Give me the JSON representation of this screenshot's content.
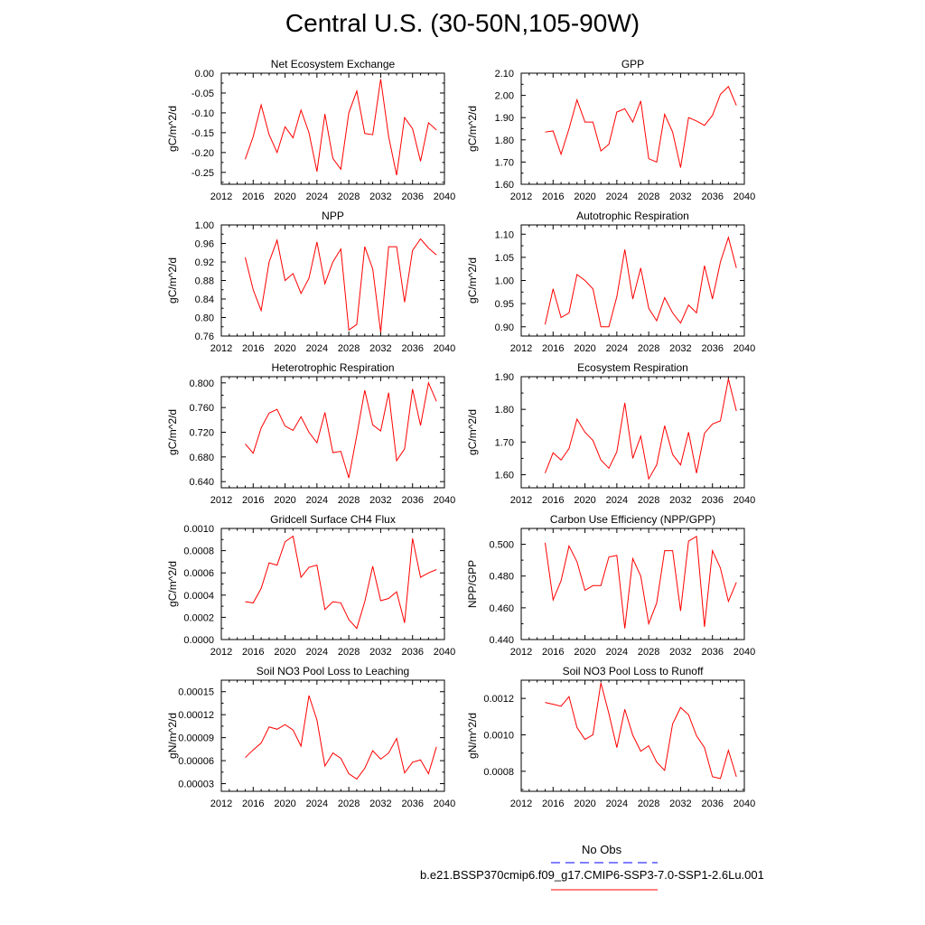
{
  "title": "Central U.S. (30-50N,105-90W)",
  "colors": {
    "model": "#ff0000",
    "obs": "#0000ff",
    "axis": "#000000"
  },
  "legend": {
    "obs_label": "No Obs",
    "model_label": "b.e21.BSSP370cmip6.f09_g17.CMIP6-SSP3-7.0-SSP1-2.6Lu.001"
  },
  "chart_data": [
    {
      "type": "line",
      "title": "Net Ecosystem Exchange",
      "ylabel": "gC/m^2/d",
      "xlabel": "",
      "xlim": [
        2012,
        2040
      ],
      "xticks": [
        "2012",
        "2016",
        "2020",
        "2024",
        "2028",
        "2032",
        "2036",
        "2040"
      ],
      "ylim": [
        -0.28,
        0.0
      ],
      "yticks": [
        "0.00",
        "-0.05",
        "-0.10",
        "-0.15",
        "-0.20",
        "-0.25"
      ],
      "x": [
        2015,
        2016,
        2017,
        2018,
        2019,
        2020,
        2021,
        2022,
        2023,
        2024,
        2025,
        2026,
        2027,
        2028,
        2029,
        2030,
        2031,
        2032,
        2033,
        2034,
        2035,
        2036,
        2037,
        2038,
        2039
      ],
      "series": [
        {
          "values": [
            -0.217,
            -0.16,
            -0.08,
            -0.155,
            -0.2,
            -0.135,
            -0.163,
            -0.093,
            -0.15,
            -0.248,
            -0.103,
            -0.215,
            -0.242,
            -0.1,
            -0.045,
            -0.152,
            -0.155,
            -0.015,
            -0.16,
            -0.257,
            -0.112,
            -0.14,
            -0.222,
            -0.125,
            -0.143
          ]
        }
      ]
    },
    {
      "type": "line",
      "title": "GPP",
      "ylabel": "gC/m^2/d",
      "xlabel": "",
      "xlim": [
        2012,
        2040
      ],
      "xticks": [
        "2012",
        "2016",
        "2020",
        "2024",
        "2028",
        "2032",
        "2036",
        "2040"
      ],
      "ylim": [
        1.6,
        2.1
      ],
      "yticks": [
        "2.10",
        "2.00",
        "1.90",
        "1.80",
        "1.70",
        "1.60"
      ],
      "x": [
        2015,
        2016,
        2017,
        2018,
        2019,
        2020,
        2021,
        2022,
        2023,
        2024,
        2025,
        2026,
        2027,
        2028,
        2029,
        2030,
        2031,
        2032,
        2033,
        2034,
        2035,
        2036,
        2037,
        2038,
        2039
      ],
      "series": [
        {
          "values": [
            1.835,
            1.84,
            1.735,
            1.85,
            1.98,
            1.88,
            1.88,
            1.75,
            1.78,
            1.925,
            1.94,
            1.88,
            1.975,
            1.715,
            1.7,
            1.915,
            1.835,
            1.675,
            1.9,
            1.885,
            1.865,
            1.91,
            2.005,
            2.04,
            1.955
          ]
        }
      ]
    },
    {
      "type": "line",
      "title": "NPP",
      "ylabel": "gC/m^2/d",
      "xlabel": "",
      "xlim": [
        2012,
        2040
      ],
      "xticks": [
        "2012",
        "2016",
        "2020",
        "2024",
        "2028",
        "2032",
        "2036",
        "2040"
      ],
      "ylim": [
        0.76,
        1.0
      ],
      "yticks": [
        "1.00",
        "0.96",
        "0.92",
        "0.88",
        "0.84",
        "0.80",
        "0.76"
      ],
      "x": [
        2015,
        2016,
        2017,
        2018,
        2019,
        2020,
        2021,
        2022,
        2023,
        2024,
        2025,
        2026,
        2027,
        2028,
        2029,
        2030,
        2031,
        2032,
        2033,
        2034,
        2035,
        2036,
        2037,
        2038,
        2039
      ],
      "series": [
        {
          "values": [
            0.93,
            0.86,
            0.815,
            0.92,
            0.967,
            0.88,
            0.895,
            0.852,
            0.885,
            0.963,
            0.873,
            0.92,
            0.948,
            0.773,
            0.785,
            0.953,
            0.905,
            0.768,
            0.953,
            0.953,
            0.833,
            0.945,
            0.97,
            0.95,
            0.935
          ]
        }
      ]
    },
    {
      "type": "line",
      "title": "Autotrophic Respiration",
      "ylabel": "gC/m^2/d",
      "xlabel": "",
      "xlim": [
        2012,
        2040
      ],
      "xticks": [
        "2012",
        "2016",
        "2020",
        "2024",
        "2028",
        "2032",
        "2036",
        "2040"
      ],
      "ylim": [
        0.88,
        1.12
      ],
      "yticks": [
        "1.10",
        "1.05",
        "1.00",
        "0.95",
        "0.90"
      ],
      "x": [
        2015,
        2016,
        2017,
        2018,
        2019,
        2020,
        2021,
        2022,
        2023,
        2024,
        2025,
        2026,
        2027,
        2028,
        2029,
        2030,
        2031,
        2032,
        2033,
        2034,
        2035,
        2036,
        2037,
        2038,
        2039
      ],
      "series": [
        {
          "values": [
            0.905,
            0.982,
            0.92,
            0.93,
            1.013,
            1.0,
            0.982,
            0.9,
            0.9,
            0.965,
            1.067,
            0.96,
            1.027,
            0.94,
            0.913,
            0.963,
            0.93,
            0.908,
            0.947,
            0.93,
            1.032,
            0.96,
            1.04,
            1.093,
            1.027
          ]
        }
      ]
    },
    {
      "type": "line",
      "title": "Heterotrophic Respiration",
      "ylabel": "gC/m^2/d",
      "xlabel": "",
      "xlim": [
        2012,
        2040
      ],
      "xticks": [
        "2012",
        "2016",
        "2020",
        "2024",
        "2028",
        "2032",
        "2036",
        "2040"
      ],
      "ylim": [
        0.63,
        0.81
      ],
      "yticks": [
        "0.800",
        "0.760",
        "0.720",
        "0.680",
        "0.640"
      ],
      "x": [
        2015,
        2016,
        2017,
        2018,
        2019,
        2020,
        2021,
        2022,
        2023,
        2024,
        2025,
        2026,
        2027,
        2028,
        2029,
        2030,
        2031,
        2032,
        2033,
        2034,
        2035,
        2036,
        2037,
        2038,
        2039
      ],
      "series": [
        {
          "values": [
            0.701,
            0.686,
            0.727,
            0.751,
            0.757,
            0.73,
            0.723,
            0.745,
            0.72,
            0.703,
            0.752,
            0.687,
            0.689,
            0.646,
            0.715,
            0.788,
            0.732,
            0.722,
            0.784,
            0.674,
            0.693,
            0.79,
            0.731,
            0.8,
            0.77
          ]
        }
      ]
    },
    {
      "type": "line",
      "title": "Ecosystem Respiration",
      "ylabel": "gC/m^2/d",
      "xlabel": "",
      "xlim": [
        2012,
        2040
      ],
      "xticks": [
        "2012",
        "2016",
        "2020",
        "2024",
        "2028",
        "2032",
        "2036",
        "2040"
      ],
      "ylim": [
        1.56,
        1.9
      ],
      "yticks": [
        "1.90",
        "1.80",
        "1.70",
        "1.60"
      ],
      "x": [
        2015,
        2016,
        2017,
        2018,
        2019,
        2020,
        2021,
        2022,
        2023,
        2024,
        2025,
        2026,
        2027,
        2028,
        2029,
        2030,
        2031,
        2032,
        2033,
        2034,
        2035,
        2036,
        2037,
        2038,
        2039
      ],
      "series": [
        {
          "values": [
            1.605,
            1.667,
            1.645,
            1.68,
            1.77,
            1.73,
            1.705,
            1.645,
            1.62,
            1.67,
            1.82,
            1.65,
            1.718,
            1.587,
            1.63,
            1.75,
            1.662,
            1.63,
            1.73,
            1.605,
            1.727,
            1.755,
            1.765,
            1.893,
            1.795
          ]
        }
      ]
    },
    {
      "type": "line",
      "title": "Gridcell Surface CH4 Flux",
      "ylabel": "gC/m^2/d",
      "xlabel": "",
      "xlim": [
        2012,
        2040
      ],
      "xticks": [
        "2012",
        "2016",
        "2020",
        "2024",
        "2028",
        "2032",
        "2036",
        "2040"
      ],
      "ylim": [
        0.0,
        0.001
      ],
      "yticks": [
        "0.0010",
        "0.0008",
        "0.0006",
        "0.0004",
        "0.0002",
        "0.0000"
      ],
      "x": [
        2015,
        2016,
        2017,
        2018,
        2019,
        2020,
        2021,
        2022,
        2023,
        2024,
        2025,
        2026,
        2027,
        2028,
        2029,
        2030,
        2031,
        2032,
        2033,
        2034,
        2035,
        2036,
        2037,
        2038,
        2039
      ],
      "series": [
        {
          "values": [
            0.00034,
            0.00033,
            0.00046,
            0.00069,
            0.00067,
            0.00088,
            0.00093,
            0.00056,
            0.00065,
            0.00067,
            0.00027,
            0.00034,
            0.00033,
            0.00018,
            0.0001,
            0.00034,
            0.00066,
            0.00035,
            0.00037,
            0.00043,
            0.00015,
            0.00091,
            0.00056,
            0.0006,
            0.00063
          ]
        }
      ]
    },
    {
      "type": "line",
      "title": "Carbon Use Efficiency (NPP/GPP)",
      "ylabel": "NPP/GPP",
      "xlabel": "",
      "xlim": [
        2012,
        2040
      ],
      "xticks": [
        "2012",
        "2016",
        "2020",
        "2024",
        "2028",
        "2032",
        "2036",
        "2040"
      ],
      "ylim": [
        0.44,
        0.51
      ],
      "yticks": [
        "0.500",
        "0.480",
        "0.460",
        "0.440"
      ],
      "x": [
        2015,
        2016,
        2017,
        2018,
        2019,
        2020,
        2021,
        2022,
        2023,
        2024,
        2025,
        2026,
        2027,
        2028,
        2029,
        2030,
        2031,
        2032,
        2033,
        2034,
        2035,
        2036,
        2037,
        2038,
        2039
      ],
      "series": [
        {
          "values": [
            0.501,
            0.465,
            0.477,
            0.499,
            0.489,
            0.471,
            0.474,
            0.474,
            0.492,
            0.493,
            0.447,
            0.491,
            0.48,
            0.45,
            0.463,
            0.496,
            0.496,
            0.458,
            0.502,
            0.505,
            0.448,
            0.496,
            0.485,
            0.464,
            0.476
          ]
        }
      ]
    },
    {
      "type": "line",
      "title": "Soil NO3 Pool Loss to Leaching",
      "ylabel": "gN/m^2/d",
      "xlabel": "",
      "xlim": [
        2012,
        2040
      ],
      "xticks": [
        "2012",
        "2016",
        "2020",
        "2024",
        "2028",
        "2032",
        "2036",
        "2040"
      ],
      "ylim": [
        2e-05,
        0.000165
      ],
      "yticks": [
        "0.00015",
        "0.00012",
        "0.00009",
        "0.00006",
        "0.00003"
      ],
      "x": [
        2015,
        2016,
        2017,
        2018,
        2019,
        2020,
        2021,
        2022,
        2023,
        2024,
        2025,
        2026,
        2027,
        2028,
        2029,
        2030,
        2031,
        2032,
        2033,
        2034,
        2035,
        2036,
        2037,
        2038,
        2039
      ],
      "series": [
        {
          "values": [
            6.4e-05,
            7.4e-05,
            8.3e-05,
            0.000104,
            0.000101,
            0.000107,
            0.0001,
            7.9e-05,
            0.000145,
            0.000113,
            5.3e-05,
            7e-05,
            6.3e-05,
            4.3e-05,
            3.6e-05,
            5e-05,
            7.3e-05,
            6.2e-05,
            7e-05,
            8.9e-05,
            4.4e-05,
            5.8e-05,
            6.1e-05,
            4.3e-05,
            7.8e-05
          ]
        }
      ]
    },
    {
      "type": "line",
      "title": "Soil NO3 Pool Loss to Runoff",
      "ylabel": "gN/m^2/d",
      "xlabel": "",
      "xlim": [
        2012,
        2040
      ],
      "xticks": [
        "2012",
        "2016",
        "2020",
        "2024",
        "2028",
        "2032",
        "2036",
        "2040"
      ],
      "ylim": [
        0.00069,
        0.0013
      ],
      "yticks": [
        "0.0012",
        "0.0010",
        "0.0008"
      ],
      "x": [
        2015,
        2016,
        2017,
        2018,
        2019,
        2020,
        2021,
        2022,
        2023,
        2024,
        2025,
        2026,
        2027,
        2028,
        2029,
        2030,
        2031,
        2032,
        2033,
        2034,
        2035,
        2036,
        2037,
        2038,
        2039
      ],
      "series": [
        {
          "values": [
            0.001178,
            0.001168,
            0.001157,
            0.00121,
            0.00104,
            0.000975,
            0.001,
            0.001285,
            0.001117,
            0.00093,
            0.00114,
            0.000998,
            0.00091,
            0.00094,
            0.00085,
            0.000805,
            0.00106,
            0.00115,
            0.00111,
            0.000995,
            0.00093,
            0.00077,
            0.00076,
            0.000915,
            0.00077
          ]
        }
      ]
    }
  ]
}
